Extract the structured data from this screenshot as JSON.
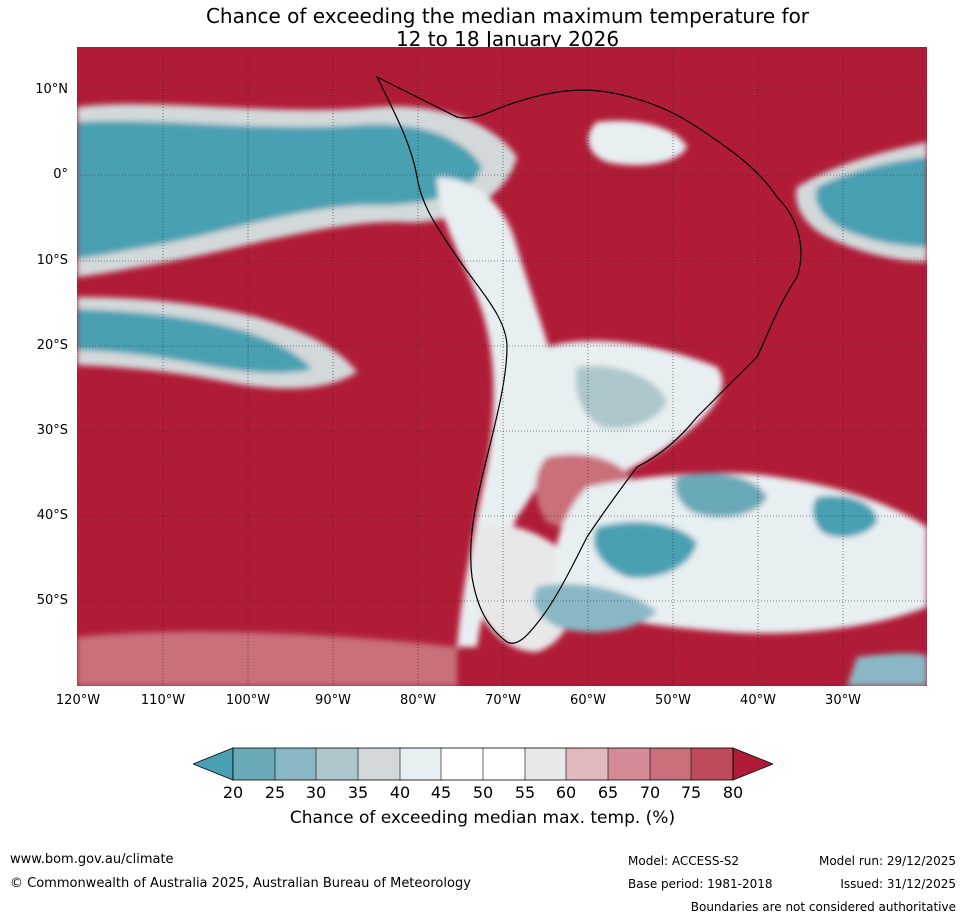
{
  "title": {
    "line1": "Chance of exceeding the median maximum temperature for",
    "line2": "12 to 18 January 2026"
  },
  "axes": {
    "lat_labels": [
      "10°N",
      "0°",
      "10°S",
      "20°S",
      "30°S",
      "40°S",
      "50°S"
    ],
    "lon_labels": [
      "120°W",
      "110°W",
      "100°W",
      "90°W",
      "80°W",
      "70°W",
      "60°W",
      "50°W",
      "40°W",
      "30°W"
    ]
  },
  "colorbar": {
    "ticks": [
      "20",
      "25",
      "30",
      "35",
      "40",
      "45",
      "50",
      "55",
      "60",
      "65",
      "70",
      "75",
      "80"
    ],
    "label": "Chance of exceeding median max. temp. (%)",
    "colors": {
      "below_20": "#4aa0b3",
      "20_25": "#6aa9b7",
      "25_30": "#8ab7c5",
      "30_35": "#adc6cc",
      "35_40": "#d3d9da",
      "40_45": "#e8eff2",
      "45_50": "#ffffff",
      "50_55": "#ffffff",
      "55_60": "#e8e8e8",
      "60_65": "#e0b8bd",
      "65_70": "#d48b95",
      "70_75": "#c96f7a",
      "75_80": "#bf4a5a",
      "above_80": "#b01c37"
    }
  },
  "footer": {
    "website": "www.bom.gov.au/climate",
    "copyright": "© Commonwealth of Australia 2025, Australian Bureau of Meteorology",
    "model": "Model: ACCESS-S2",
    "base_period": "Base period: 1981-2018",
    "model_run": "Model run: 29/12/2025",
    "issued": "Issued: 31/12/2025",
    "disclaimer": "Boundaries are not considered authoritative"
  }
}
